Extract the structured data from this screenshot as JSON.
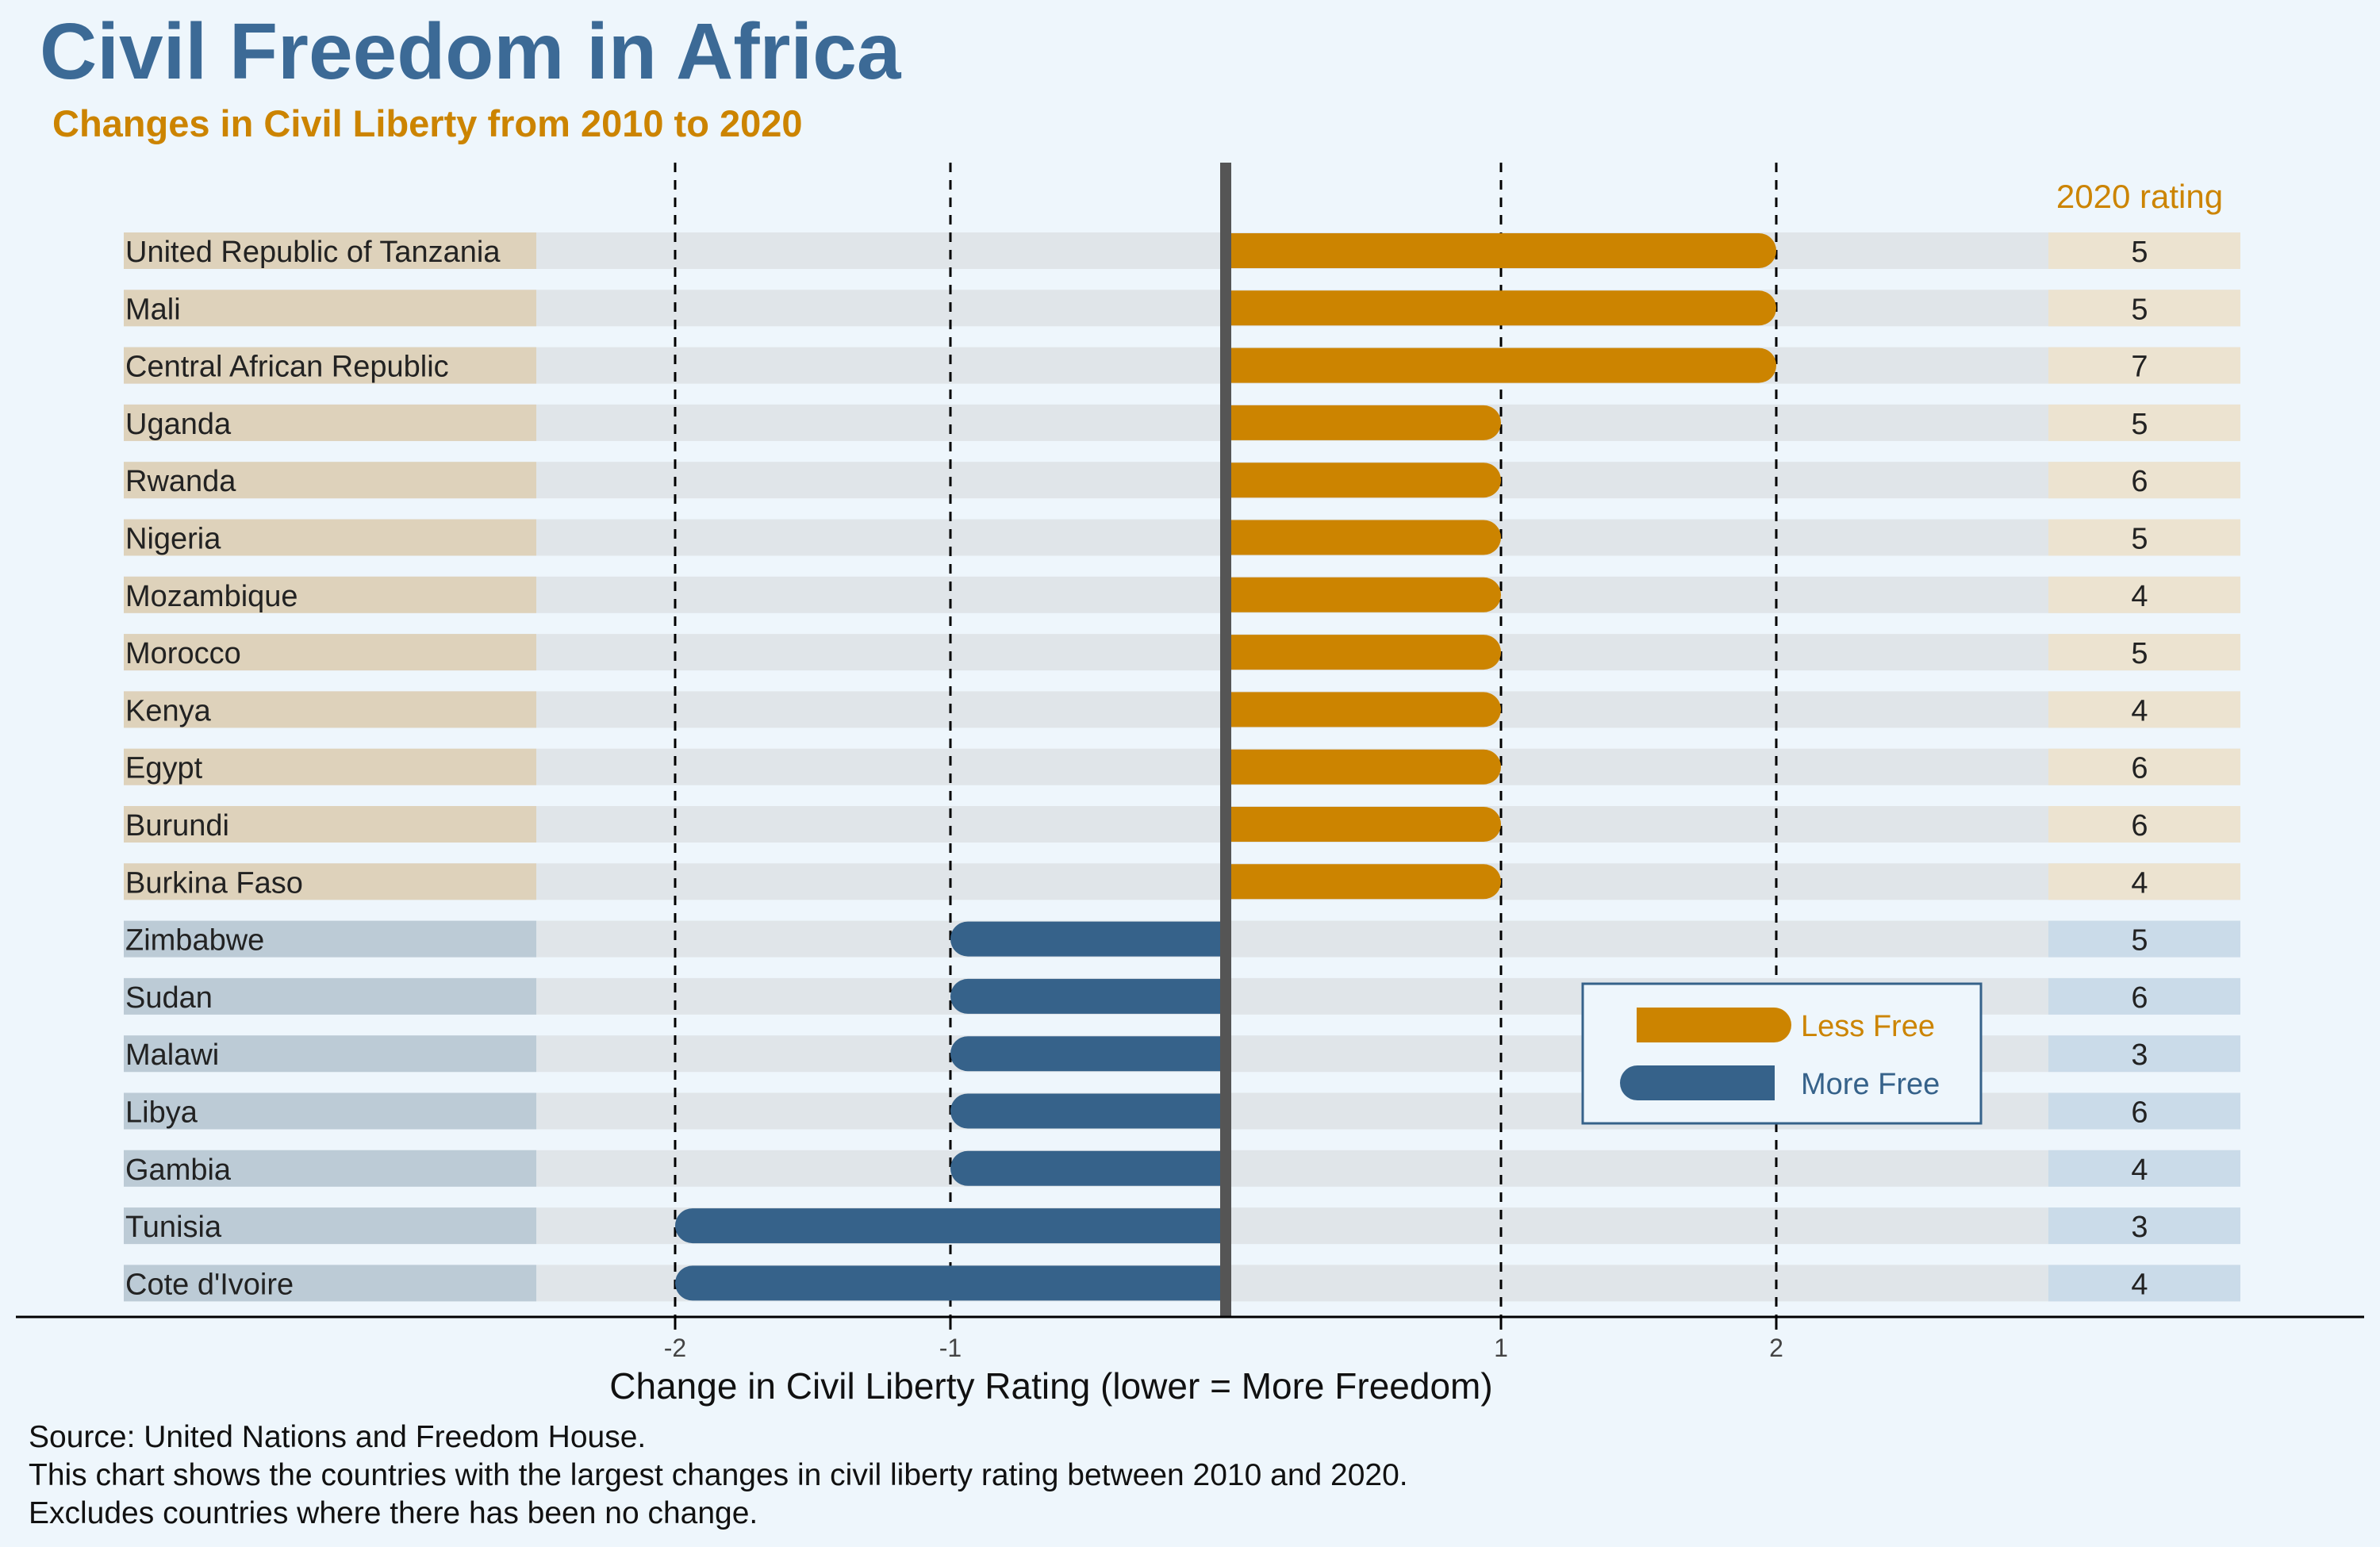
{
  "title": "Civil Freedom in Africa",
  "subtitle": "Changes in Civil Liberty from 2010 to 2020",
  "chart_data": {
    "type": "bar",
    "orientation": "horizontal",
    "xlabel": "Change in Civil Liberty Rating (lower = More Freedom)",
    "xticks": [
      -2,
      -1,
      1,
      2
    ],
    "xlim": [
      -2.5,
      2.5
    ],
    "grid": "vertical dashed lines at ticks",
    "rating_header": "2020 rating",
    "legend": {
      "placement": "lower-right",
      "entries": [
        {
          "label": "Less Free",
          "color": "#cc8400"
        },
        {
          "label": "More Free",
          "color": "#36628a"
        }
      ]
    },
    "categories": [
      "United Republic of Tanzania",
      "Mali",
      "Central African Republic",
      "Uganda",
      "Rwanda",
      "Nigeria",
      "Mozambique",
      "Morocco",
      "Kenya",
      "Egypt",
      "Burundi",
      "Burkina Faso",
      "Zimbabwe",
      "Sudan",
      "Malawi",
      "Libya",
      "Gambia",
      "Tunisia",
      "Cote d'Ivoire"
    ],
    "values": [
      2,
      2,
      2,
      1,
      1,
      1,
      1,
      1,
      1,
      1,
      1,
      1,
      -1,
      -1,
      -1,
      -1,
      -1,
      -2,
      -2
    ],
    "ratings_2020": [
      5,
      5,
      7,
      5,
      6,
      5,
      4,
      5,
      4,
      6,
      6,
      4,
      5,
      6,
      3,
      6,
      4,
      3,
      4
    ]
  },
  "colors": {
    "less_free": "#cc8400",
    "more_free": "#36628a",
    "title": "#3c6a96",
    "background": "#eef6fc"
  },
  "footer": {
    "source": "Source: United Nations and Freedom House.",
    "note1": "This chart shows the countries with the largest changes in civil liberty rating between 2010 and 2020.",
    "note2": "Excludes countries where there has been no change."
  }
}
